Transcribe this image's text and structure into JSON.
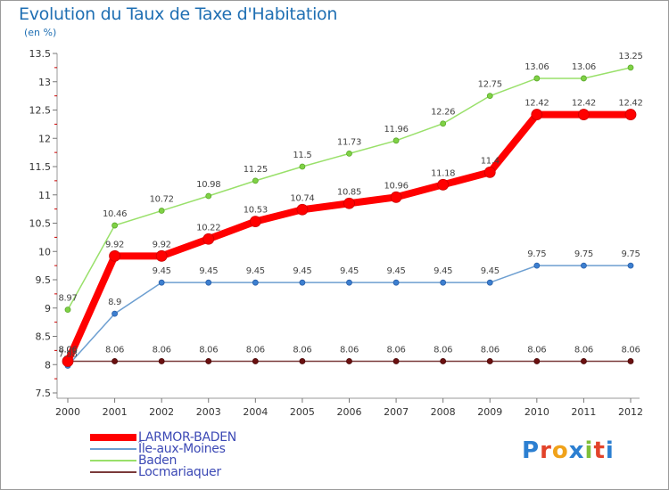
{
  "header": {
    "title": "Evolution du Taux de Taxe d'Habitation",
    "subtitle": "(en %)"
  },
  "logo": {
    "text": "Proxiti",
    "letter_colors": [
      "#2c7fd1",
      "#e2432a",
      "#f0a21a",
      "#2c7fd1",
      "#7fbf3a",
      "#e2432a",
      "#2c7fd1"
    ]
  },
  "legend": {
    "items": [
      {
        "label": "LARMOR-BADEN",
        "color": "#ff0000"
      },
      {
        "label": "Île-aux-Moines",
        "color": "#6d9fd1"
      },
      {
        "label": "Baden",
        "color": "#99e06a"
      },
      {
        "label": "Locmariaquer",
        "color": "#7a3a3a"
      }
    ]
  },
  "chart_data": {
    "type": "line",
    "title": "Evolution du Taux de Taxe d'Habitation",
    "subtitle": "(en %)",
    "categories": [
      "2000",
      "2001",
      "2002",
      "2003",
      "2004",
      "2005",
      "2006",
      "2007",
      "2008",
      "2009",
      "2010",
      "2011",
      "2012"
    ],
    "y_ticks": [
      "7.5",
      "8",
      "8.5",
      "9",
      "9.5",
      "10",
      "10.5",
      "11",
      "11.5",
      "12",
      "12.5",
      "13",
      "13.5"
    ],
    "ylim": [
      7.5,
      13.5
    ],
    "grid": false,
    "legend_position": "bottom-left",
    "series": [
      {
        "name": "LARMOR-BADEN",
        "color": "#ff0000",
        "values": [
          8.06,
          9.92,
          9.92,
          10.22,
          10.53,
          10.74,
          10.85,
          10.96,
          11.18,
          11.4,
          12.42,
          12.42,
          12.42
        ],
        "labels": [
          "8.06",
          "9.92",
          "9.92",
          "10.22",
          "10.53",
          "10.74",
          "10.85",
          "10.96",
          "11.18",
          "11.4",
          "12.42",
          "12.42",
          "12.42"
        ]
      },
      {
        "name": "Île-aux-Moines",
        "color": "#6d9fd1",
        "values": [
          7.98,
          8.9,
          9.45,
          9.45,
          9.45,
          9.45,
          9.45,
          9.45,
          9.45,
          9.45,
          9.75,
          9.75,
          9.75
        ],
        "labels": [
          "7.98",
          "8.9",
          "9.45",
          "9.45",
          "9.45",
          "9.45",
          "9.45",
          "9.45",
          "9.45",
          "9.45",
          "9.75",
          "9.75",
          "9.75"
        ]
      },
      {
        "name": "Baden",
        "color": "#99e06a",
        "values": [
          8.97,
          10.46,
          10.72,
          10.98,
          11.25,
          11.5,
          11.73,
          11.96,
          12.26,
          12.75,
          13.06,
          13.06,
          13.25
        ],
        "labels": [
          "8.97",
          "10.46",
          "10.72",
          "10.98",
          "11.25",
          "11.5",
          "11.73",
          "11.96",
          "12.26",
          "12.75",
          "13.06",
          "13.06",
          "13.25"
        ]
      },
      {
        "name": "Locmariaquer",
        "color": "#7a3a3a",
        "values": [
          8.06,
          8.06,
          8.06,
          8.06,
          8.06,
          8.06,
          8.06,
          8.06,
          8.06,
          8.06,
          8.06,
          8.06,
          8.06
        ],
        "labels": [
          "8.06",
          "8.06",
          "8.06",
          "8.06",
          "8.06",
          "8.06",
          "8.06",
          "8.06",
          "8.06",
          "8.06",
          "8.06",
          "8.06",
          "8.06"
        ]
      }
    ]
  }
}
